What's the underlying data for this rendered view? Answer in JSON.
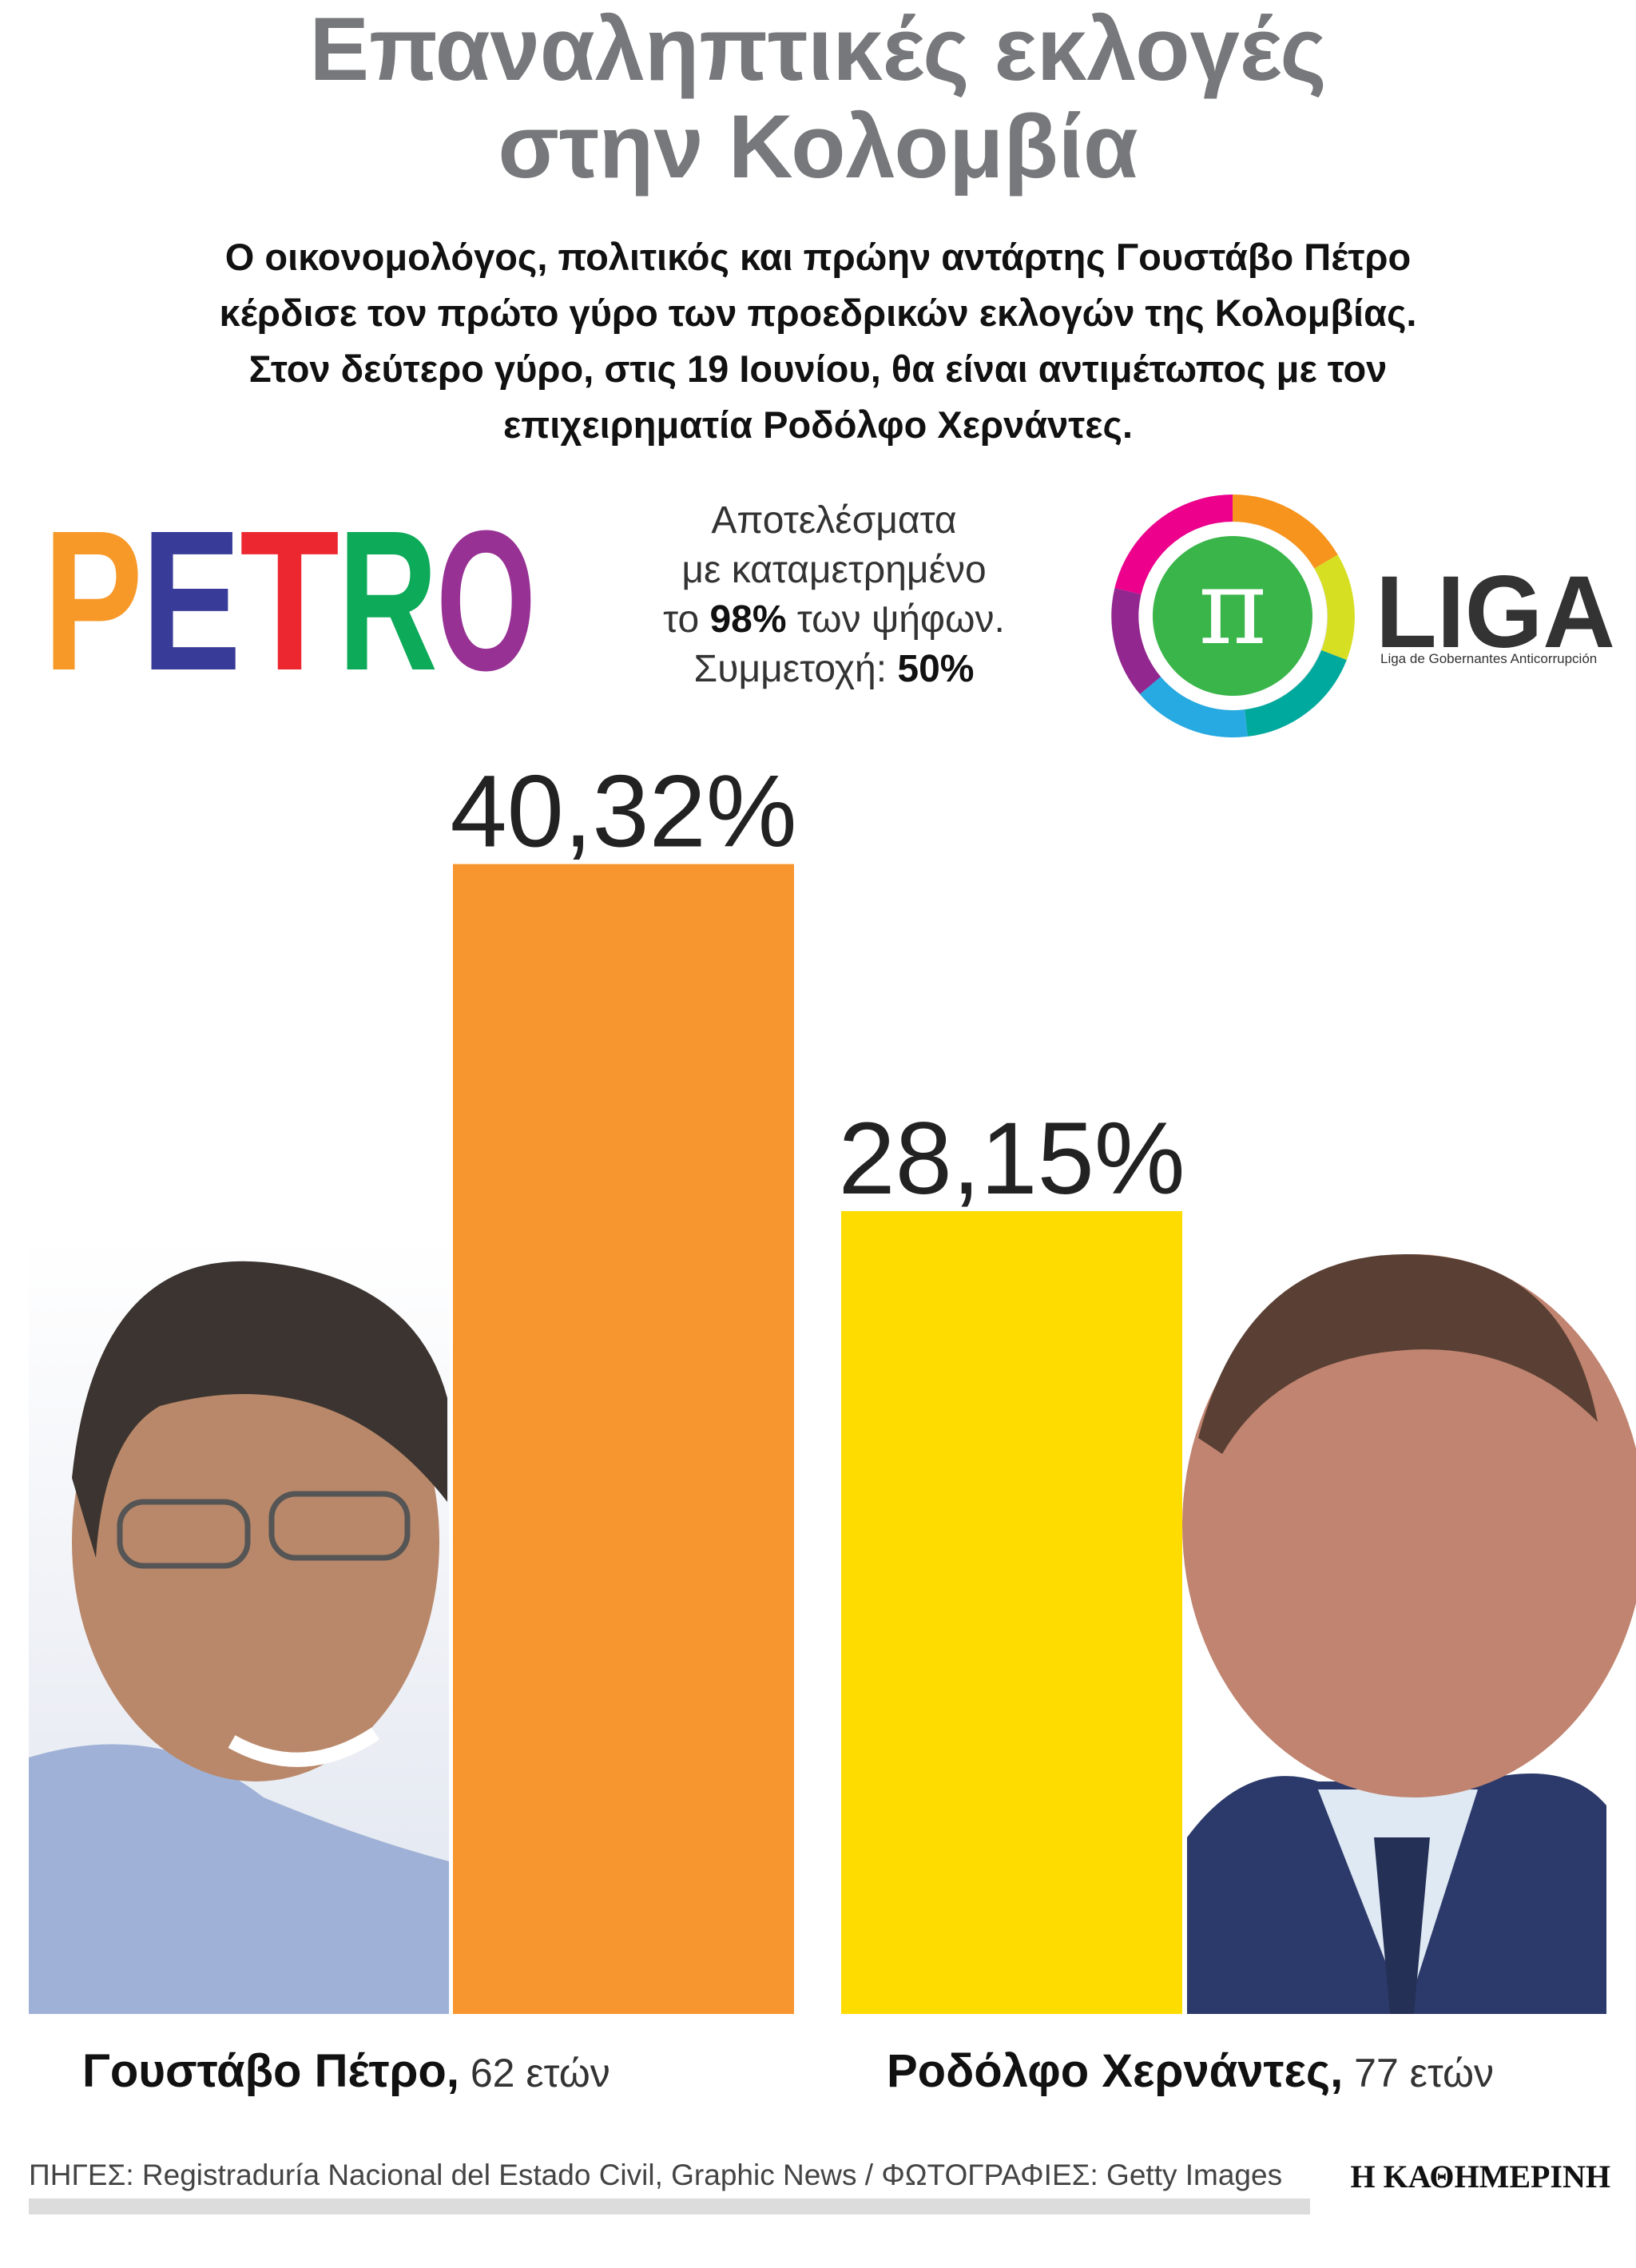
{
  "chart_data": {
    "type": "bar",
    "title": [
      "Επαναληπτικές εκλογές",
      "στην Κολομβία"
    ],
    "subtitle": [
      "Ο οικονομολόγος, πολιτικός και πρώην αντάρτης Γουστάβο Πέτρο",
      "κέρδισε τον πρώτο γύρο των προεδρικών εκλογών της Κολομβίας.",
      "Στον δεύτερο γύρο, στις 19 Ιουνίου, θα είναι αντιμέτωπος με τον",
      "επιχειρηματία Ροδόλφο Χερνάντες."
    ],
    "note": [
      [
        {
          "text": "Αποτελέσματα"
        }
      ],
      [
        {
          "text": "με καταμετρημένο"
        }
      ],
      [
        {
          "text": "το "
        },
        {
          "text": "98%",
          "bold": true
        },
        {
          "text": " των ψήφων."
        }
      ],
      [
        {
          "text": "Συμμετοχή: "
        },
        {
          "text": "50%",
          "bold": true
        }
      ]
    ],
    "logos": {
      "left": [
        "P",
        "E",
        "T",
        "R",
        "O"
      ],
      "right_symbol": "π",
      "right": "LIGA",
      "right_sub": "Liga de Gobernantes Anticorrupción"
    },
    "categories": [
      "Γουστάβο Πέτρο,",
      "Ροδόλφο Χερνάντες,"
    ],
    "ages": [
      " 62 ετών",
      " 77 ετών"
    ],
    "values": [
      40.32,
      28.15
    ],
    "value_labels": [
      "40,32%",
      "28,15%"
    ],
    "colors": [
      "#f7962f",
      "#ffdc00"
    ],
    "source": "ΠΗΓΕΣ: Registraduría Nacional del Estado Civil, Graphic News / ΦΩΤΟΓΡΑΦΙΕΣ: Getty Images",
    "publisher": "Η ΚΑΘΗΜΕΡΙΝΗ"
  }
}
